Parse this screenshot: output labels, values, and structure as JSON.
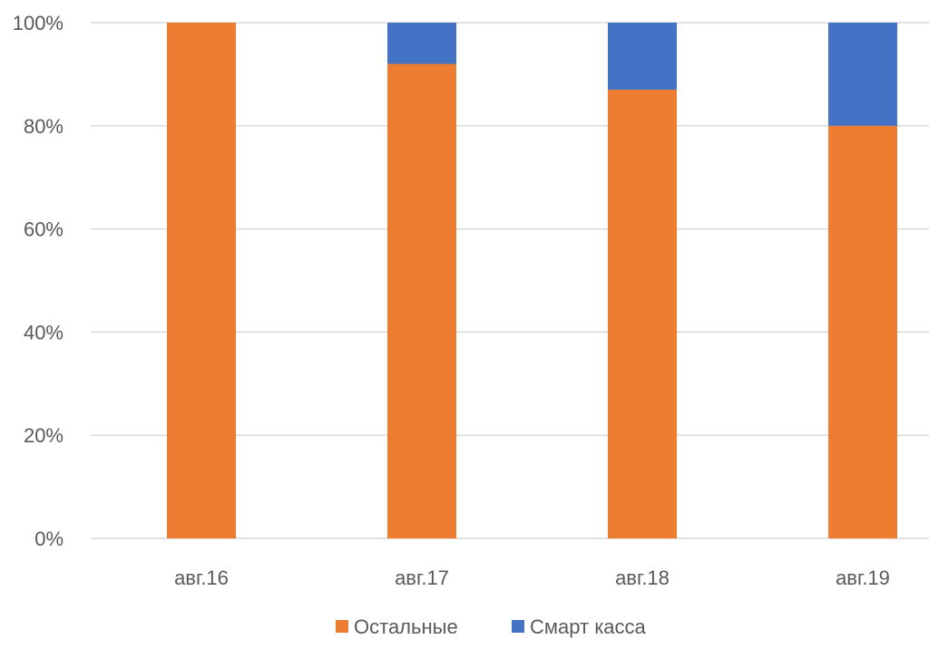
{
  "chart_data": {
    "type": "bar",
    "stacked": true,
    "categories": [
      "авг.16",
      "авг.17",
      "авг.18",
      "авг.19"
    ],
    "series": [
      {
        "name": "Остальные",
        "color": "#ED7D31",
        "values": [
          100,
          92,
          87,
          80
        ]
      },
      {
        "name": "Смарт касса",
        "color": "#4472C4",
        "values": [
          0,
          8,
          13,
          20
        ]
      }
    ],
    "ylim": [
      0,
      100
    ],
    "y_ticks": [
      0,
      20,
      40,
      60,
      80,
      100
    ],
    "y_tick_labels": [
      "0%",
      "20%",
      "40%",
      "60%",
      "80%",
      "100%"
    ],
    "grid": true,
    "gridline_color": "#D9D9D9",
    "legend_position": "bottom"
  }
}
